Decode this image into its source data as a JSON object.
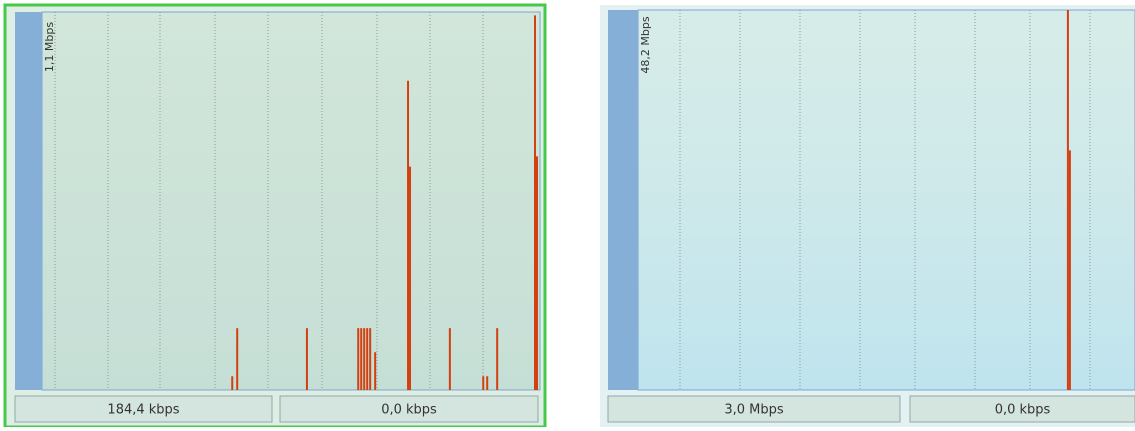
{
  "panels": [
    {
      "axis_label": "1,1 Mbps",
      "ylim": [
        0,
        1.1
      ],
      "xlim": [
        0,
        100
      ],
      "x": [
        38.2,
        39.2,
        53.2,
        63.5,
        64.1,
        64.7,
        65.3,
        65.9,
        66.9,
        73.5,
        73.9,
        81.9,
        88.6,
        89.4,
        91.4,
        99.0,
        99.4
      ],
      "values": [
        0.04,
        0.18,
        0.18,
        0.18,
        0.18,
        0.18,
        0.18,
        0.18,
        0.11,
        0.9,
        0.65,
        0.18,
        0.04,
        0.04,
        0.18,
        1.09,
        0.68
      ],
      "status": [
        "184,4 kbps",
        "0,0 kbps"
      ]
    },
    {
      "axis_label": "48,2 Mbps",
      "ylim": [
        0,
        48.2
      ],
      "xlim": [
        0,
        100
      ],
      "x": [
        86.5,
        86.9
      ],
      "values": [
        48.2,
        30.4
      ],
      "status": [
        "3,0 Mbps",
        "0,0 kbps"
      ]
    }
  ]
}
